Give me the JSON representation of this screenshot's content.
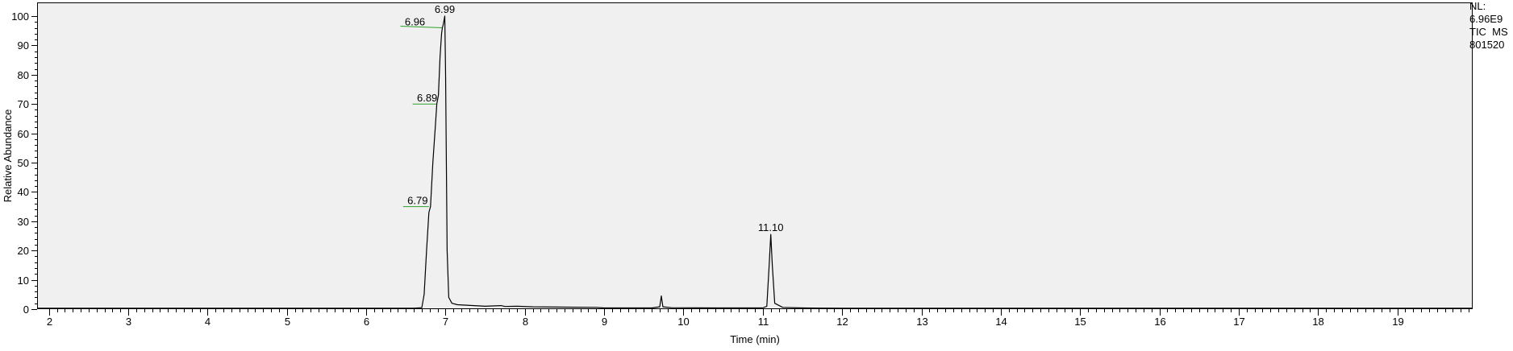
{
  "chart_data": {
    "type": "line",
    "xlabel": "Time (min)",
    "ylabel": "Relative Abundance",
    "xlim": [
      1.85,
      19.95
    ],
    "ylim": [
      0,
      100
    ],
    "x_ticks": [
      "2",
      "3",
      "4",
      "5",
      "6",
      "7",
      "8",
      "9",
      "10",
      "11",
      "12",
      "13",
      "14",
      "15",
      "16",
      "17",
      "18",
      "19"
    ],
    "y_ticks": [
      "0",
      "10",
      "20",
      "30",
      "40",
      "50",
      "60",
      "70",
      "80",
      "90",
      "100"
    ],
    "grid": false,
    "series": [
      {
        "color": "#000000",
        "points": [
          [
            1.85,
            0.3
          ],
          [
            6.0,
            0.3
          ],
          [
            6.6,
            0.3
          ],
          [
            6.7,
            0.5
          ],
          [
            6.73,
            5
          ],
          [
            6.76,
            20
          ],
          [
            6.79,
            33
          ],
          [
            6.81,
            35
          ],
          [
            6.84,
            50
          ],
          [
            6.87,
            62
          ],
          [
            6.89,
            70
          ],
          [
            6.91,
            73
          ],
          [
            6.93,
            86
          ],
          [
            6.95,
            94
          ],
          [
            6.96,
            96
          ],
          [
            6.97,
            97
          ],
          [
            6.99,
            100
          ],
          [
            7.0,
            80
          ],
          [
            7.02,
            20
          ],
          [
            7.04,
            4
          ],
          [
            7.08,
            2
          ],
          [
            7.15,
            1.5
          ],
          [
            7.5,
            1.0
          ],
          [
            7.7,
            1.2
          ],
          [
            7.75,
            0.9
          ],
          [
            7.9,
            1.0
          ],
          [
            8.1,
            0.8
          ],
          [
            8.5,
            0.7
          ],
          [
            8.9,
            0.6
          ],
          [
            9.0,
            0.4
          ],
          [
            9.6,
            0.4
          ],
          [
            9.7,
            0.8
          ],
          [
            9.72,
            4.5
          ],
          [
            9.74,
            0.8
          ],
          [
            9.85,
            0.5
          ],
          [
            10.5,
            0.4
          ],
          [
            11.0,
            0.4
          ],
          [
            11.05,
            1
          ],
          [
            11.08,
            15
          ],
          [
            11.1,
            25.5
          ],
          [
            11.12,
            15
          ],
          [
            11.15,
            2
          ],
          [
            11.25,
            0.6
          ],
          [
            11.5,
            0.4
          ],
          [
            12.0,
            0.3
          ],
          [
            19.95,
            0.3
          ]
        ]
      }
    ],
    "annotations": [
      {
        "text": "6.99",
        "x": 6.99,
        "y": 100
      },
      {
        "text": "6.96",
        "x": 6.96,
        "y": 96
      },
      {
        "text": "6.89",
        "x": 6.89,
        "y": 70
      },
      {
        "text": "6.79",
        "x": 6.79,
        "y": 35
      },
      {
        "text": "11.10",
        "x": 11.1,
        "y": 25.5
      }
    ],
    "info": {
      "nl_label": "NL:",
      "nl_value": "6.96E9",
      "trace": "TIC  MS",
      "file": "801520"
    },
    "colors": {
      "plot_background": "#f0f0f0",
      "trace": "#000000",
      "marker_lines": "#2ca02c",
      "frame": "#000000"
    }
  }
}
